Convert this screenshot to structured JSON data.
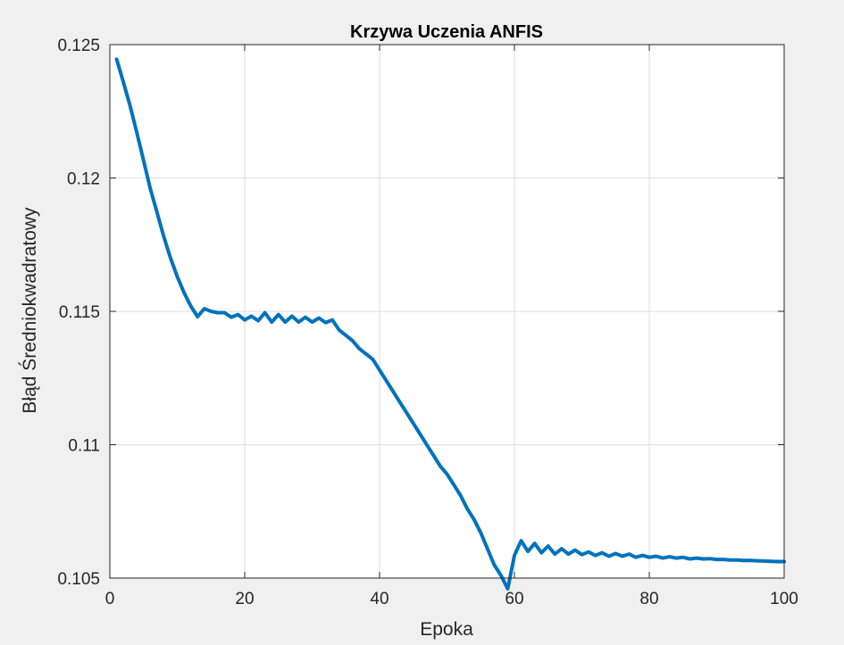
{
  "chart_data": {
    "type": "line",
    "title": "Krzywa Uczenia ANFIS",
    "xlabel": "Epoka",
    "ylabel": "Błąd Średniokwadratowy",
    "xlim": [
      0,
      100
    ],
    "ylim": [
      0.105,
      0.125
    ],
    "x_ticks": [
      0,
      20,
      40,
      60,
      80,
      100
    ],
    "x_tick_labels": [
      "0",
      "20",
      "40",
      "60",
      "80",
      "100"
    ],
    "y_ticks": [
      0.105,
      0.11,
      0.115,
      0.12,
      0.125
    ],
    "y_tick_labels": [
      "0.105",
      "0.11",
      "0.115",
      "0.12",
      "0.125"
    ],
    "grid": true,
    "legend": "none",
    "line_color": "#0072BD",
    "series": [
      {
        "x": [
          1,
          2,
          3,
          4,
          5,
          6,
          7,
          8,
          9,
          10,
          11,
          12,
          13,
          14,
          15,
          16,
          17,
          18,
          19,
          20,
          21,
          22,
          23,
          24,
          25,
          26,
          27,
          28,
          29,
          30,
          31,
          32,
          33,
          34,
          35,
          36,
          37,
          38,
          39,
          40,
          41,
          42,
          43,
          44,
          45,
          46,
          47,
          48,
          49,
          50,
          51,
          52,
          53,
          54,
          55,
          56,
          57,
          58,
          59,
          60,
          61,
          62,
          63,
          64,
          65,
          66,
          67,
          68,
          69,
          70,
          71,
          72,
          73,
          74,
          75,
          76,
          77,
          78,
          79,
          80,
          81,
          82,
          83,
          84,
          85,
          86,
          87,
          88,
          89,
          90,
          91,
          92,
          93,
          94,
          95,
          96,
          97,
          98,
          99,
          100
        ],
        "values": [
          0.12445,
          0.1236,
          0.1227,
          0.1217,
          0.12065,
          0.1196,
          0.1187,
          0.1178,
          0.117,
          0.1163,
          0.1157,
          0.1152,
          0.1148,
          0.1151,
          0.115,
          0.11495,
          0.11495,
          0.11478,
          0.11488,
          0.11468,
          0.11482,
          0.11465,
          0.11495,
          0.1146,
          0.11488,
          0.1146,
          0.11482,
          0.1146,
          0.11478,
          0.1146,
          0.11475,
          0.11458,
          0.11468,
          0.1143,
          0.1141,
          0.1139,
          0.1136,
          0.1134,
          0.1132,
          0.1128,
          0.1124,
          0.112,
          0.1116,
          0.1112,
          0.1108,
          0.1104,
          0.11,
          0.1096,
          0.1092,
          0.1089,
          0.1085,
          0.1081,
          0.1076,
          0.1072,
          0.1067,
          0.1061,
          0.1055,
          0.1051,
          0.1046,
          0.10585,
          0.1064,
          0.106,
          0.1063,
          0.10595,
          0.1062,
          0.1059,
          0.1061,
          0.1059,
          0.10605,
          0.10588,
          0.10598,
          0.10585,
          0.10595,
          0.10582,
          0.10592,
          0.10582,
          0.1059,
          0.10578,
          0.10585,
          0.10578,
          0.10582,
          0.10575,
          0.1058,
          0.10575,
          0.10578,
          0.10572,
          0.10575,
          0.10572,
          0.10573,
          0.1057,
          0.1057,
          0.10568,
          0.10568,
          0.10566,
          0.10566,
          0.10565,
          0.10564,
          0.10563,
          0.10562,
          0.10562
        ]
      }
    ]
  }
}
